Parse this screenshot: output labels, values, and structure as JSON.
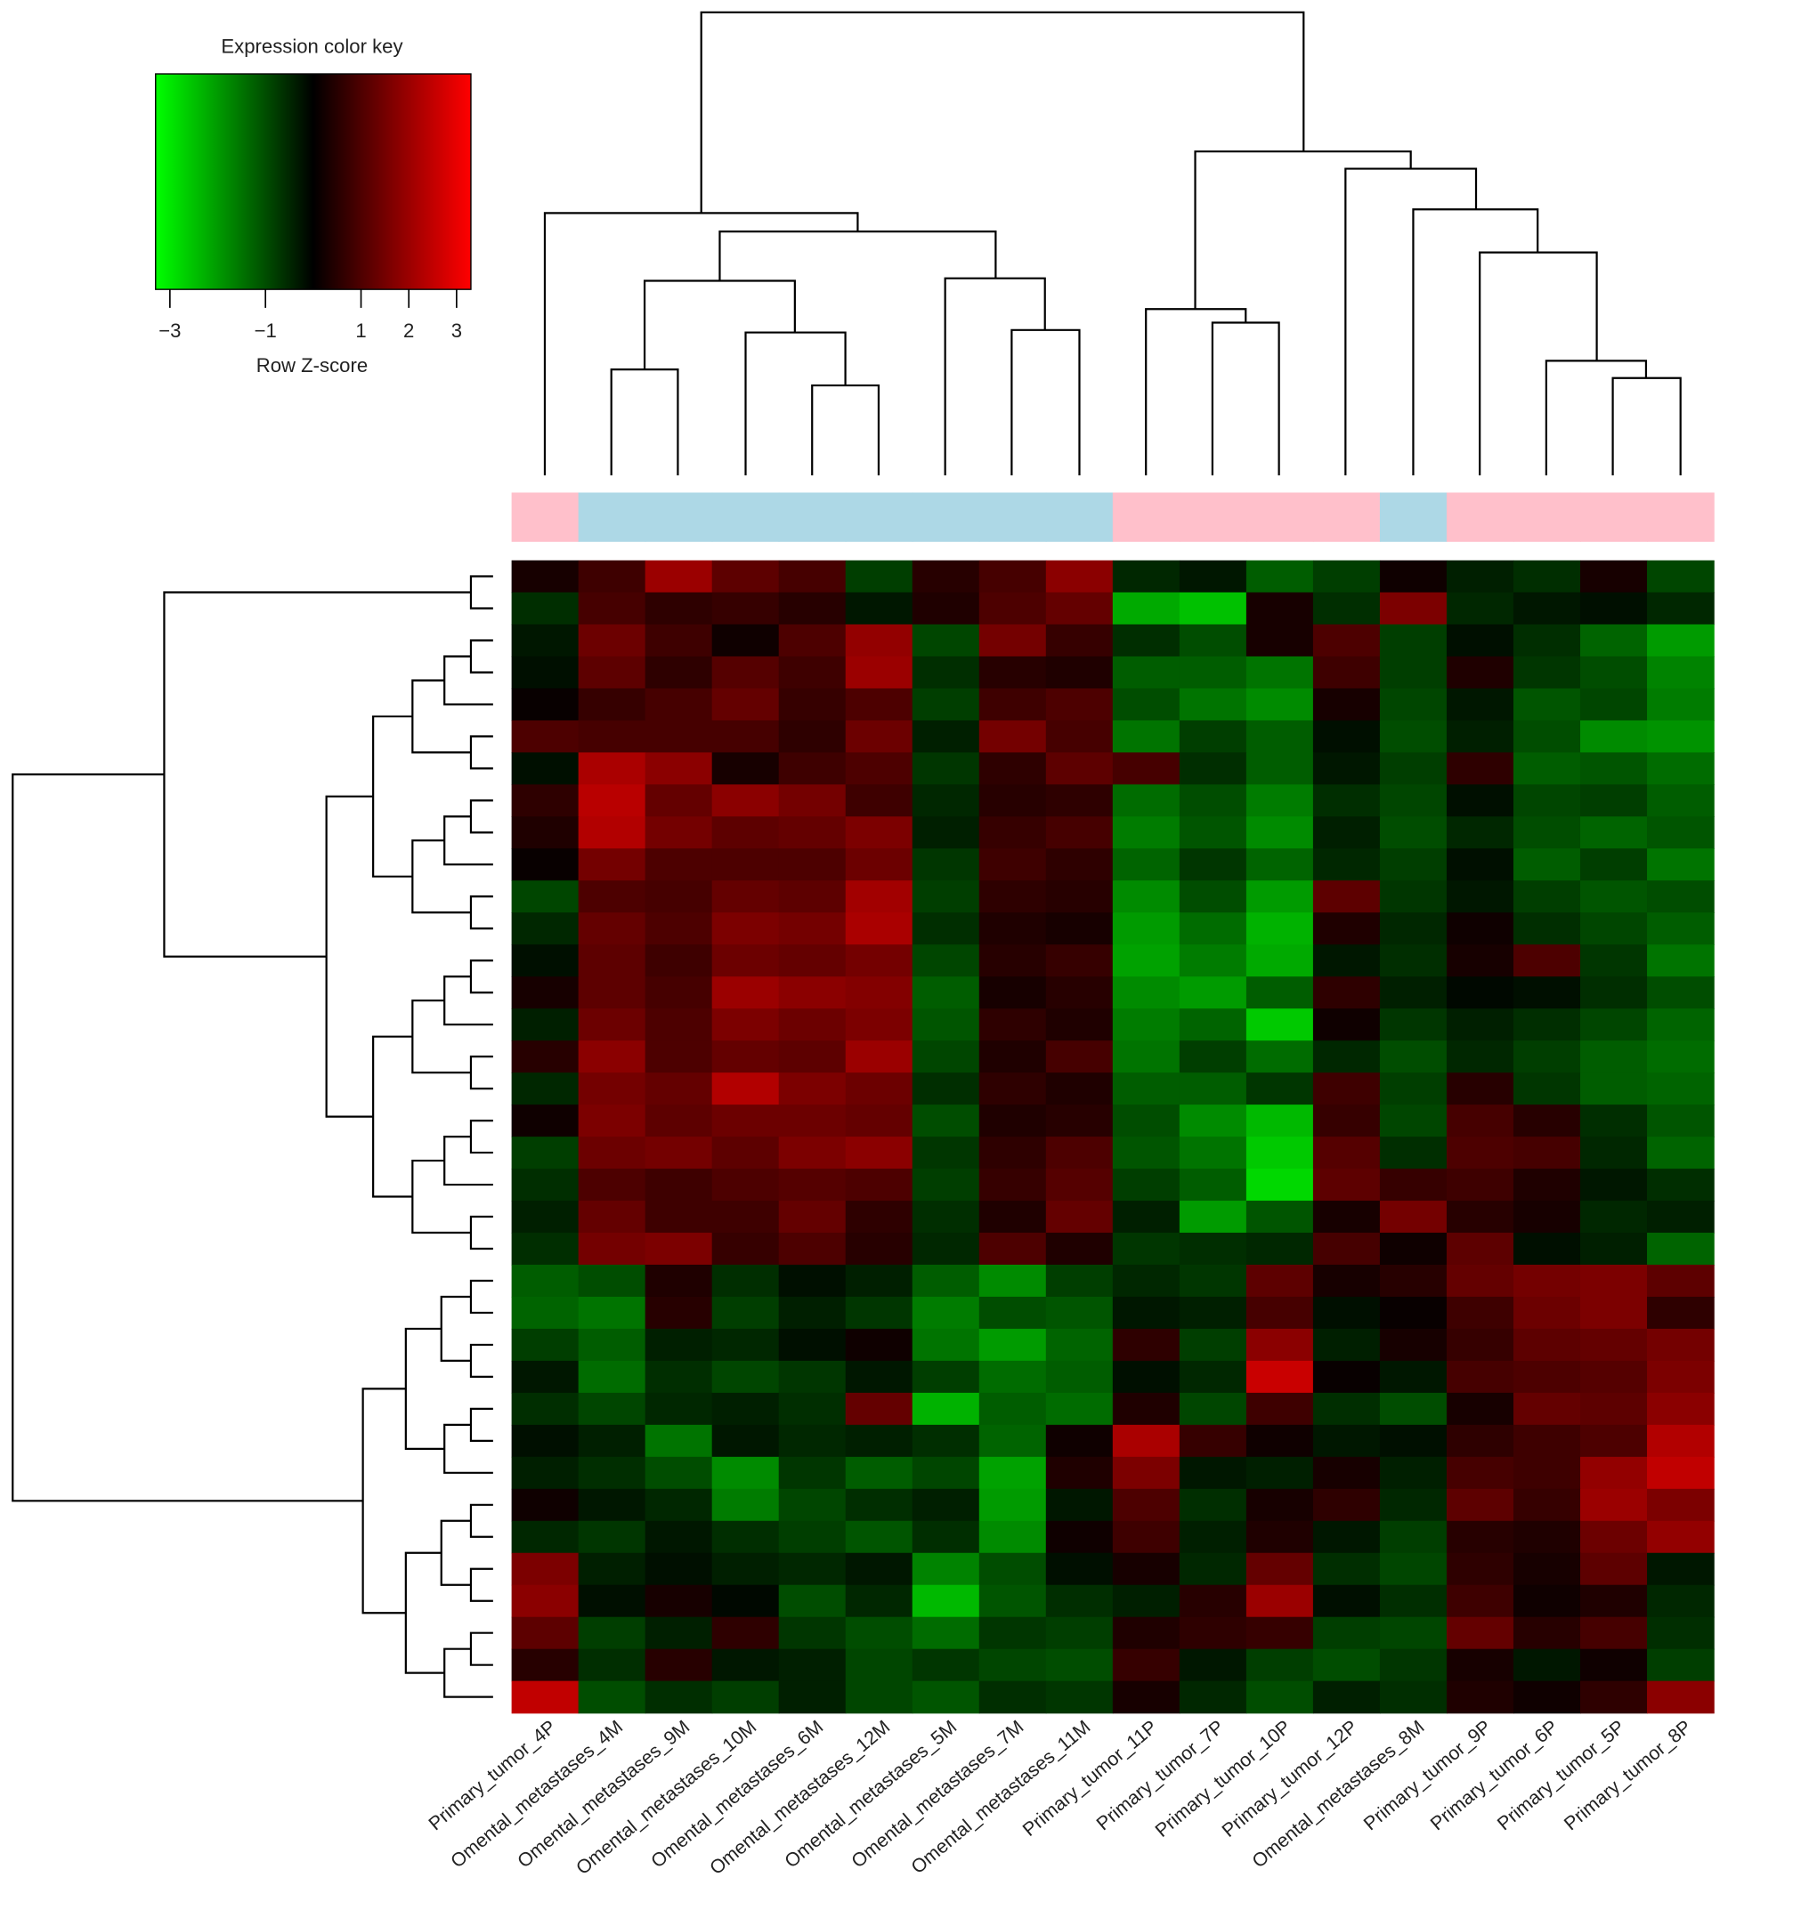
{
  "chart_data": {
    "type": "heatmap",
    "key_title": "Expression color key",
    "key_xlabel": "Row Z-score",
    "key_xlim": [
      -3.3,
      3.3
    ],
    "key_ticks": [
      {
        "value": -3,
        "label": "−3"
      },
      {
        "value": -1,
        "label": "−1"
      },
      1,
      2,
      3
    ],
    "low_color": "#00ff00",
    "mid_color": "#000000",
    "high_color": "#ff0000",
    "columns": [
      "Primary_tumor_4P",
      "Omental_metastases_4M",
      "Omental_metastases_9M",
      "Omental_metastases_10M",
      "Omental_metastases_6M",
      "Omental_metastases_12M",
      "Omental_metastases_5M",
      "Omental_metastases_7M",
      "Omental_metastases_11M",
      "Primary_tumor_11P",
      "Primary_tumor_7P",
      "Primary_tumor_10P",
      "Primary_tumor_12P",
      "Omental_metastases_8M",
      "Primary_tumor_9P",
      "Primary_tumor_6P",
      "Primary_tumor_5P",
      "Primary_tumor_8P"
    ],
    "column_colors": [
      "#ffc0cb",
      "#add8e6",
      "#add8e6",
      "#add8e6",
      "#add8e6",
      "#add8e6",
      "#add8e6",
      "#add8e6",
      "#add8e6",
      "#ffc0cb",
      "#ffc0cb",
      "#ffc0cb",
      "#ffc0cb",
      "#add8e6",
      "#ffc0cb",
      "#ffc0cb",
      "#ffc0cb",
      "#ffc0cb"
    ],
    "values": [
      [
        0.3,
        0.8,
        2.0,
        1.2,
        0.9,
        -0.8,
        0.5,
        0.9,
        1.8,
        -0.5,
        -0.3,
        -1.2,
        -0.8,
        0.2,
        -0.4,
        -0.6,
        0.3,
        -0.9
      ],
      [
        -0.6,
        0.9,
        0.6,
        0.7,
        0.5,
        -0.3,
        0.4,
        1.0,
        1.3,
        -2.2,
        -2.5,
        0.3,
        -0.6,
        1.6,
        -0.5,
        -0.3,
        -0.2,
        -0.5
      ],
      [
        -0.3,
        1.4,
        0.8,
        0.2,
        1.0,
        1.9,
        -0.9,
        1.5,
        0.7,
        -0.6,
        -1.0,
        0.3,
        1.0,
        -0.8,
        -0.2,
        -0.6,
        -1.3,
        -2.0
      ],
      [
        -0.2,
        1.2,
        0.6,
        1.1,
        0.8,
        2.0,
        -0.6,
        0.5,
        0.4,
        -1.2,
        -1.2,
        -1.5,
        0.8,
        -0.8,
        0.4,
        -0.7,
        -1.0,
        -1.7
      ],
      [
        0.1,
        0.7,
        0.9,
        1.3,
        0.7,
        1.0,
        -0.8,
        0.8,
        1.0,
        -1.0,
        -1.5,
        -1.8,
        0.3,
        -0.9,
        -0.3,
        -1.1,
        -0.9,
        -1.6
      ],
      [
        1.0,
        0.9,
        0.9,
        0.9,
        0.6,
        1.4,
        -0.4,
        1.5,
        0.9,
        -1.5,
        -0.8,
        -1.2,
        -0.2,
        -1.0,
        -0.4,
        -1.0,
        -1.8,
        -1.9
      ],
      [
        -0.2,
        2.2,
        1.8,
        0.3,
        0.8,
        1.0,
        -0.7,
        0.6,
        1.2,
        0.9,
        -0.6,
        -1.2,
        -0.3,
        -0.8,
        0.6,
        -1.2,
        -1.1,
        -1.4
      ],
      [
        0.6,
        2.4,
        1.3,
        1.8,
        1.5,
        0.8,
        -0.5,
        0.5,
        0.6,
        -1.4,
        -1.0,
        -1.6,
        -0.6,
        -0.9,
        -0.2,
        -0.9,
        -0.8,
        -1.2
      ],
      [
        0.4,
        2.3,
        1.5,
        1.2,
        1.3,
        1.6,
        -0.4,
        0.7,
        0.9,
        -1.6,
        -1.1,
        -1.8,
        -0.4,
        -1.0,
        -0.5,
        -1.0,
        -1.3,
        -1.1
      ],
      [
        0.1,
        1.5,
        1.0,
        1.0,
        1.0,
        1.4,
        -0.7,
        0.8,
        0.6,
        -1.3,
        -0.7,
        -1.3,
        -0.5,
        -0.8,
        -0.2,
        -1.2,
        -0.8,
        -1.5
      ],
      [
        -0.9,
        1.0,
        0.9,
        1.3,
        1.2,
        2.1,
        -0.8,
        0.6,
        0.5,
        -1.8,
        -1.0,
        -2.0,
        1.2,
        -0.7,
        -0.3,
        -0.8,
        -1.1,
        -1.0
      ],
      [
        -0.5,
        1.3,
        1.0,
        1.6,
        1.5,
        2.2,
        -0.6,
        0.4,
        0.3,
        -2.0,
        -1.4,
        -2.3,
        0.4,
        -0.5,
        0.2,
        -0.6,
        -0.9,
        -1.2
      ],
      [
        -0.2,
        1.2,
        0.8,
        1.4,
        1.3,
        1.5,
        -0.9,
        0.5,
        0.7,
        -2.1,
        -1.6,
        -2.2,
        -0.3,
        -0.6,
        0.3,
        1.0,
        -0.7,
        -1.5
      ],
      [
        0.3,
        1.2,
        0.9,
        2.0,
        1.8,
        1.7,
        -1.2,
        0.3,
        0.5,
        -1.8,
        -2.0,
        -1.2,
        0.6,
        -0.4,
        -0.1,
        -0.2,
        -0.6,
        -1.0
      ],
      [
        -0.4,
        1.4,
        1.0,
        1.6,
        1.4,
        1.6,
        -1.1,
        0.6,
        0.4,
        -1.6,
        -1.3,
        -2.6,
        0.2,
        -0.7,
        -0.4,
        -0.6,
        -0.9,
        -1.3
      ],
      [
        0.5,
        1.8,
        1.0,
        1.3,
        1.2,
        2.0,
        -0.9,
        0.4,
        0.9,
        -1.5,
        -0.8,
        -1.4,
        -0.5,
        -1.0,
        -0.5,
        -0.8,
        -1.2,
        -1.4
      ],
      [
        -0.5,
        1.5,
        1.3,
        2.3,
        1.6,
        1.4,
        -0.6,
        0.6,
        0.4,
        -1.2,
        -1.2,
        -0.7,
        0.8,
        -0.8,
        0.5,
        -0.7,
        -1.2,
        -1.3
      ],
      [
        0.2,
        1.6,
        1.2,
        1.4,
        1.4,
        1.3,
        -1.0,
        0.4,
        0.5,
        -1.0,
        -1.8,
        -2.4,
        0.7,
        -0.9,
        0.9,
        0.5,
        -0.6,
        -1.1
      ],
      [
        -0.8,
        1.4,
        1.5,
        1.2,
        1.6,
        1.8,
        -0.7,
        0.6,
        1.0,
        -1.1,
        -1.5,
        -2.6,
        1.1,
        -0.6,
        1.0,
        0.9,
        -0.5,
        -1.3
      ],
      [
        -0.6,
        1.0,
        0.8,
        1.0,
        1.1,
        1.0,
        -0.8,
        0.7,
        1.1,
        -0.8,
        -1.2,
        -2.8,
        1.2,
        0.7,
        0.8,
        0.4,
        -0.3,
        -0.6
      ],
      [
        -0.4,
        1.3,
        0.8,
        0.8,
        1.3,
        0.6,
        -0.6,
        0.4,
        1.3,
        -0.4,
        -2.0,
        -1.1,
        0.3,
        1.5,
        0.5,
        0.3,
        -0.5,
        -0.4
      ],
      [
        -0.6,
        1.5,
        1.6,
        0.7,
        1.0,
        0.5,
        -0.5,
        1.0,
        0.4,
        -0.7,
        -0.6,
        -0.5,
        0.9,
        0.2,
        1.2,
        -0.2,
        -0.4,
        -1.3
      ],
      [
        -1.2,
        -1.0,
        0.4,
        -0.6,
        -0.2,
        -0.4,
        -1.2,
        -1.8,
        -0.8,
        -0.5,
        -0.7,
        1.2,
        0.3,
        0.5,
        1.3,
        1.5,
        1.6,
        1.2
      ],
      [
        -1.3,
        -1.5,
        0.5,
        -0.8,
        -0.4,
        -0.7,
        -1.6,
        -1.0,
        -1.1,
        -0.3,
        -0.4,
        0.9,
        -0.2,
        0.1,
        0.8,
        1.4,
        1.6,
        0.6
      ],
      [
        -0.8,
        -1.2,
        -0.4,
        -0.5,
        -0.2,
        0.2,
        -1.5,
        -2.0,
        -1.3,
        0.6,
        -0.8,
        1.8,
        -0.4,
        0.3,
        0.7,
        1.2,
        1.3,
        1.5
      ],
      [
        -0.3,
        -1.4,
        -0.6,
        -0.9,
        -0.7,
        -0.3,
        -0.8,
        -1.4,
        -1.2,
        -0.2,
        -0.5,
        2.6,
        0.1,
        -0.3,
        0.9,
        1.0,
        1.1,
        1.6
      ],
      [
        -0.6,
        -0.9,
        -0.5,
        -0.4,
        -0.6,
        1.3,
        -2.3,
        -1.2,
        -1.4,
        0.4,
        -0.9,
        0.8,
        -0.6,
        -1.0,
        0.3,
        1.3,
        1.2,
        1.8
      ],
      [
        -0.2,
        -0.4,
        -1.5,
        -0.3,
        -0.5,
        -0.4,
        -0.6,
        -1.3,
        0.2,
        2.2,
        0.7,
        0.2,
        -0.3,
        -0.2,
        0.6,
        0.8,
        1.0,
        2.3
      ],
      [
        -0.4,
        -0.6,
        -1.0,
        -1.8,
        -0.7,
        -1.2,
        -0.9,
        -2.1,
        0.4,
        1.6,
        -0.3,
        -0.4,
        0.3,
        -0.4,
        0.9,
        0.8,
        1.9,
        2.5
      ],
      [
        0.2,
        -0.3,
        -0.5,
        -1.6,
        -0.9,
        -0.6,
        -0.4,
        -2.0,
        -0.3,
        1.0,
        -0.6,
        0.3,
        0.6,
        -0.5,
        1.2,
        0.7,
        2.0,
        1.6
      ],
      [
        -0.5,
        -0.7,
        -0.3,
        -0.6,
        -0.8,
        -1.1,
        -0.6,
        -1.8,
        0.2,
        0.8,
        -0.4,
        0.4,
        -0.3,
        -0.8,
        0.5,
        0.4,
        1.4,
        1.9
      ],
      [
        1.6,
        -0.4,
        -0.2,
        -0.4,
        -0.5,
        -0.3,
        -1.7,
        -1.0,
        -0.2,
        0.3,
        -0.5,
        1.3,
        -0.6,
        -0.9,
        0.6,
        0.3,
        1.2,
        -0.3
      ],
      [
        1.8,
        -0.2,
        0.3,
        -0.1,
        -1.0,
        -0.5,
        -2.4,
        -1.1,
        -0.6,
        -0.4,
        0.5,
        2.0,
        -0.2,
        -0.6,
        0.8,
        0.2,
        0.4,
        -0.5
      ],
      [
        1.2,
        -0.8,
        -0.4,
        0.6,
        -0.7,
        -1.0,
        -1.4,
        -0.7,
        -0.8,
        0.4,
        0.6,
        0.7,
        -0.8,
        -0.9,
        1.3,
        0.5,
        0.9,
        -0.6
      ],
      [
        0.5,
        -0.6,
        0.5,
        -0.3,
        -0.4,
        -0.9,
        -0.7,
        -0.9,
        -1.0,
        0.7,
        -0.3,
        -0.8,
        -1.0,
        -0.7,
        0.3,
        -0.3,
        0.2,
        -0.8
      ],
      [
        2.5,
        -1.0,
        -0.6,
        -0.8,
        -0.4,
        -0.9,
        -1.1,
        -0.6,
        -0.7,
        0.3,
        -0.5,
        -1.0,
        -0.4,
        -0.6,
        0.4,
        0.2,
        0.6,
        1.8
      ]
    ]
  }
}
